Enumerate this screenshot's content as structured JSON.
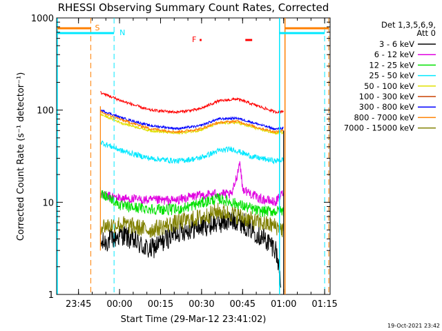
{
  "chart_data": {
    "type": "line",
    "title": "RHESSI Observing Summary Count Rates, Corrected",
    "xlabel": "Start Time (29-Mar-12 23:41:02)",
    "ylabel": "Corrected Count Rate (s⁻¹ detector⁻¹)",
    "yscale": "log",
    "ylim": [
      1,
      1000
    ],
    "xlim_minutes_from_start": [
      -4,
      96
    ],
    "x_ticks": [
      {
        "label": "23:45",
        "t": 4
      },
      {
        "label": "00:00",
        "t": 19
      },
      {
        "label": "00:15",
        "t": 34
      },
      {
        "label": "00:30",
        "t": 49
      },
      {
        "label": "00:45",
        "t": 64
      },
      {
        "label": "01:00",
        "t": 79
      },
      {
        "label": "01:15",
        "t": 94
      }
    ],
    "y_ticks": [
      {
        "label": "1",
        "v": 1
      },
      {
        "label": "10",
        "v": 10
      },
      {
        "label": "100",
        "v": 100
      },
      {
        "label": "1000",
        "v": 1000
      }
    ],
    "legend_header": [
      "Det 1,3,5,6,9,",
      "Att 0"
    ],
    "series": [
      {
        "name": "3 - 6 keV",
        "color": "#000000",
        "key": [
          [
            12,
            3.5
          ],
          [
            20,
            4.5
          ],
          [
            30,
            3.0
          ],
          [
            40,
            4.8
          ],
          [
            55,
            6.0
          ],
          [
            62,
            6.5
          ],
          [
            68,
            5.0
          ],
          [
            76,
            3.2
          ],
          [
            78,
            1.5
          ]
        ]
      },
      {
        "name": "6 - 12 keV",
        "color": "#e000e0",
        "key": [
          [
            12,
            12
          ],
          [
            20,
            11
          ],
          [
            30,
            10.5
          ],
          [
            40,
            10.5
          ],
          [
            45,
            11.5
          ],
          [
            50,
            12
          ],
          [
            55,
            12.5
          ],
          [
            60,
            12
          ],
          [
            62,
            20
          ],
          [
            63,
            28
          ],
          [
            64,
            14
          ],
          [
            70,
            11
          ],
          [
            76,
            10
          ],
          [
            79,
            13
          ]
        ]
      },
      {
        "name": "12 - 25 keV",
        "color": "#00e000",
        "key": [
          [
            12,
            13
          ],
          [
            20,
            9
          ],
          [
            30,
            8.5
          ],
          [
            40,
            8.3
          ],
          [
            50,
            10
          ],
          [
            55,
            11
          ],
          [
            60,
            10
          ],
          [
            70,
            8
          ],
          [
            79,
            8
          ]
        ]
      },
      {
        "name": "25 - 50 keV",
        "color": "#00e8ff",
        "key": [
          [
            12,
            45
          ],
          [
            20,
            36
          ],
          [
            30,
            30
          ],
          [
            40,
            28
          ],
          [
            48,
            30
          ],
          [
            55,
            36
          ],
          [
            60,
            38
          ],
          [
            68,
            31
          ],
          [
            76,
            28
          ],
          [
            79,
            29
          ]
        ]
      },
      {
        "name": "50 - 100 keV",
        "color": "#e0e000",
        "key": [
          [
            12,
            90
          ],
          [
            20,
            72
          ],
          [
            30,
            60
          ],
          [
            40,
            56
          ],
          [
            48,
            60
          ],
          [
            55,
            72
          ],
          [
            62,
            73
          ],
          [
            70,
            62
          ],
          [
            76,
            56
          ],
          [
            79,
            57
          ]
        ]
      },
      {
        "name": "100 - 300 keV",
        "color": "#c84000",
        "key": []
      },
      {
        "name": "300 - 800 keV",
        "color": "#0000ff",
        "key": [
          [
            12,
            100
          ],
          [
            20,
            82
          ],
          [
            30,
            68
          ],
          [
            40,
            63
          ],
          [
            48,
            67
          ],
          [
            55,
            80
          ],
          [
            62,
            82
          ],
          [
            70,
            70
          ],
          [
            76,
            62
          ],
          [
            79,
            64
          ]
        ]
      },
      {
        "name": "800 - 7000 keV",
        "color": "#ff8000",
        "key": [
          [
            12,
            95
          ],
          [
            20,
            78
          ],
          [
            30,
            63
          ],
          [
            40,
            58
          ],
          [
            48,
            62
          ],
          [
            55,
            73
          ],
          [
            62,
            76
          ],
          [
            70,
            64
          ],
          [
            76,
            58
          ],
          [
            79,
            60
          ]
        ]
      },
      {
        "name": "7000 - 15000 keV",
        "color": "#808000",
        "key": [
          [
            12,
            5.5
          ],
          [
            20,
            5.8
          ],
          [
            30,
            5.0
          ],
          [
            40,
            6.0
          ],
          [
            50,
            7.0
          ],
          [
            55,
            8.0
          ],
          [
            60,
            7.5
          ],
          [
            70,
            6.0
          ],
          [
            76,
            5.5
          ],
          [
            79,
            5.0
          ]
        ]
      },
      {
        "name": "red",
        "color": "#ff0000",
        "legend": false,
        "key": [
          [
            12,
            155
          ],
          [
            20,
            125
          ],
          [
            30,
            100
          ],
          [
            40,
            95
          ],
          [
            48,
            102
          ],
          [
            55,
            125
          ],
          [
            62,
            132
          ],
          [
            70,
            110
          ],
          [
            76,
            95
          ],
          [
            79,
            98
          ]
        ]
      }
    ],
    "attenuator_labels": [
      {
        "text": "S",
        "color": "#ff8000"
      },
      {
        "text": "N",
        "color": "#00e8ff"
      },
      {
        "text": "F",
        "color": "#ff0000"
      }
    ],
    "timestamp": "19-Oct-2021 23:42"
  }
}
